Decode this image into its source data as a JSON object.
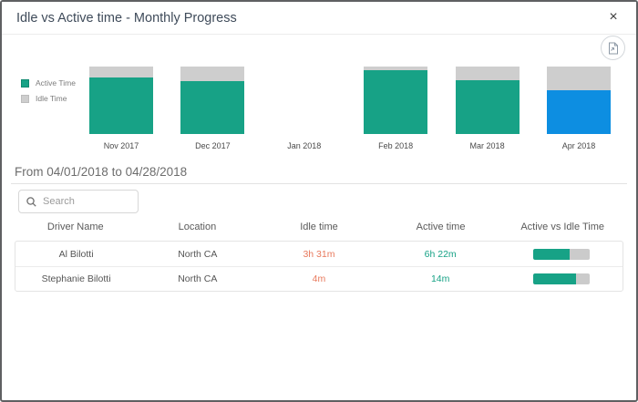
{
  "dialog": {
    "title": "Idle vs Active time - Monthly Progress",
    "close_label": "×"
  },
  "legend": {
    "active_label": "Active Time",
    "idle_label": "Idle Time"
  },
  "chart_data": {
    "type": "bar",
    "stacked": true,
    "unit": "percent_of_total_time",
    "categories": [
      "Nov 2017",
      "Dec 2017",
      "Jan 2018",
      "Feb 2018",
      "Mar 2018",
      "Apr 2018"
    ],
    "series": [
      {
        "name": "Active Time",
        "values": [
          84,
          79,
          null,
          95,
          80,
          65
        ]
      },
      {
        "name": "Idle Time",
        "values": [
          16,
          21,
          null,
          5,
          20,
          35
        ]
      }
    ],
    "highlighted_category": "Apr 2018",
    "legend_position": "left",
    "ylim": [
      0,
      100
    ],
    "grid": false
  },
  "chart": {
    "bars": [
      {
        "label": "Nov 2017",
        "idle_pct": 16,
        "active_pct": 84,
        "has_data": true,
        "highlighted": false
      },
      {
        "label": "Dec 2017",
        "idle_pct": 21,
        "active_pct": 79,
        "has_data": true,
        "highlighted": false
      },
      {
        "label": "Jan 2018",
        "idle_pct": 0,
        "active_pct": 0,
        "has_data": false,
        "highlighted": false
      },
      {
        "label": "Feb 2018",
        "idle_pct": 5,
        "active_pct": 95,
        "has_data": true,
        "highlighted": false
      },
      {
        "label": "Mar 2018",
        "idle_pct": 20,
        "active_pct": 80,
        "has_data": true,
        "highlighted": false
      },
      {
        "label": "Apr 2018",
        "idle_pct": 35,
        "active_pct": 65,
        "has_data": true,
        "highlighted": true
      }
    ]
  },
  "period": {
    "label": "From 04/01/2018 to 04/28/2018"
  },
  "search": {
    "placeholder": "Search",
    "value": ""
  },
  "table": {
    "headers": [
      "Driver Name",
      "Location",
      "Idle time",
      "Active time",
      "Active vs Idle Time"
    ],
    "rows": [
      {
        "driver": "Al Bilotti",
        "location": "North CA",
        "idle_time": "3h 31m",
        "active_time": "6h 22m",
        "active_pct": 64
      },
      {
        "driver": "Stephanie Bilotti",
        "location": "North CA",
        "idle_time": "4m",
        "active_time": "14m",
        "active_pct": 76
      }
    ]
  },
  "colors": {
    "active_teal": "#17a286",
    "idle_gray": "#cecece",
    "selected_blue": "#0d8ee1",
    "idle_text_coral": "#e8795c",
    "active_text_teal": "#17a286"
  }
}
